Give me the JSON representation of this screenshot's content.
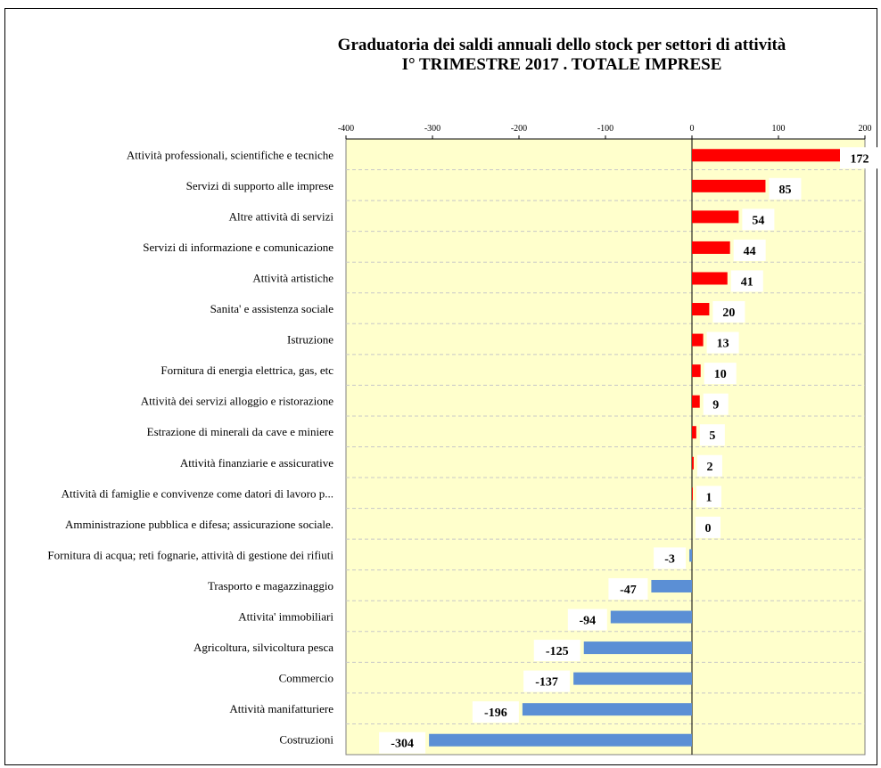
{
  "chart_data": {
    "type": "bar",
    "orientation": "horizontal",
    "title": "Graduatoria dei saldi annuali dello stock per settori di attività",
    "subtitle": "I° TRIMESTRE 2017 . TOTALE IMPRESE",
    "xlim": [
      -400,
      200
    ],
    "xticks": [
      -400,
      -300,
      -200,
      -100,
      0,
      100,
      200
    ],
    "xtick_labels": [
      "-400",
      "-300",
      "-200",
      "-100",
      "0",
      "100",
      "200"
    ],
    "grid": true,
    "colors": {
      "positive": "#ff0000",
      "negative": "#5b8fd5",
      "plot_background": "#ffffcc",
      "gridline": "#c8c8c8"
    },
    "categories": [
      "Attività professionali, scientifiche e tecniche",
      "Servizi di supporto alle imprese",
      "Altre attività di servizi",
      "Servizi di informazione e comunicazione",
      "Attività artistiche",
      "Sanita' e assistenza sociale",
      "Istruzione",
      "Fornitura di energia elettrica, gas, etc",
      "Attività dei servizi alloggio e ristorazione",
      "Estrazione di minerali da cave e miniere",
      "Attività finanziarie e assicurative",
      "Attività di famiglie e convivenze come datori di lavoro p...",
      "Amministrazione pubblica e difesa; assicurazione sociale.",
      "Fornitura di acqua; reti fognarie, attività di gestione dei rifiuti",
      "Trasporto e magazzinaggio",
      "Attivita' immobiliari",
      "Agricoltura, silvicoltura pesca",
      "Commercio",
      "Attività manifatturiere",
      "Costruzioni"
    ],
    "values": [
      172,
      85,
      54,
      44,
      41,
      20,
      13,
      10,
      9,
      5,
      2,
      1,
      0,
      -3,
      -47,
      -94,
      -125,
      -137,
      -196,
      -304
    ]
  }
}
